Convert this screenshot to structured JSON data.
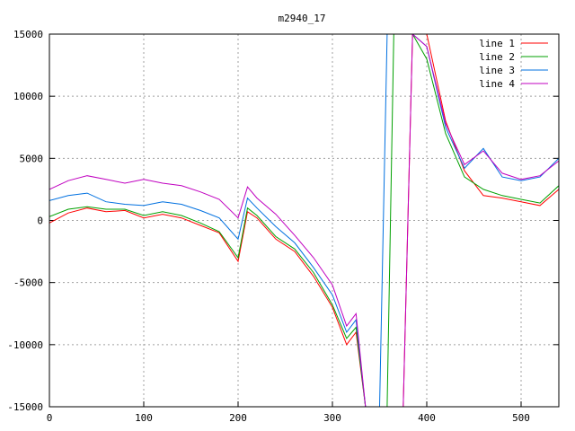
{
  "chart_data": {
    "type": "line",
    "title": "m2940_17",
    "xlabel": "",
    "ylabel": "",
    "xlim": [
      0,
      540
    ],
    "ylim": [
      -15000,
      15000
    ],
    "x_ticks": [
      "0",
      "100",
      "200",
      "300",
      "400",
      "500"
    ],
    "y_ticks": [
      "-15000",
      "-10000",
      "-5000",
      "0",
      "5000",
      "10000",
      "15000"
    ],
    "grid": true,
    "legend_position": "top-right",
    "series": [
      {
        "name": "line 1",
        "color": "#ff0000",
        "x": [
          0,
          20,
          40,
          60,
          80,
          100,
          120,
          140,
          160,
          180,
          200,
          210,
          220,
          240,
          260,
          280,
          300,
          315,
          325,
          335,
          350,
          358,
          365,
          375,
          385,
          400,
          420,
          440,
          460,
          480,
          500,
          520,
          540
        ],
        "y": [
          -200,
          600,
          1000,
          700,
          800,
          200,
          500,
          200,
          -400,
          -1000,
          -3300,
          700,
          200,
          -1500,
          -2500,
          -4500,
          -7000,
          -10000,
          -9000,
          -15000,
          -15000,
          -15000,
          -15000,
          -15000,
          15000,
          15000,
          8000,
          4000,
          2000,
          1800,
          1500,
          1200,
          2500
        ]
      },
      {
        "name": "line 2",
        "color": "#00a000",
        "x": [
          0,
          20,
          40,
          60,
          80,
          100,
          120,
          140,
          160,
          180,
          200,
          210,
          220,
          240,
          260,
          280,
          300,
          315,
          325,
          335,
          350,
          358,
          365,
          375,
          385,
          400,
          420,
          440,
          460,
          480,
          500,
          520,
          540
        ],
        "y": [
          300,
          900,
          1100,
          900,
          900,
          400,
          700,
          400,
          -200,
          -900,
          -3000,
          1000,
          400,
          -1300,
          -2300,
          -4200,
          -6800,
          -9500,
          -8600,
          -15000,
          -15000,
          -15000,
          15000,
          15000,
          15000,
          13000,
          7000,
          3500,
          2500,
          2000,
          1700,
          1400,
          2800
        ]
      },
      {
        "name": "line 3",
        "color": "#0070e0",
        "x": [
          0,
          20,
          40,
          60,
          80,
          100,
          120,
          140,
          160,
          180,
          200,
          210,
          220,
          240,
          260,
          280,
          300,
          315,
          325,
          335,
          350,
          358,
          365,
          375,
          385,
          400,
          420,
          440,
          460,
          480,
          500,
          520,
          540
        ],
        "y": [
          1600,
          2000,
          2200,
          1500,
          1300,
          1200,
          1500,
          1300,
          800,
          200,
          -1500,
          1800,
          1000,
          -500,
          -1800,
          -3800,
          -6000,
          -9000,
          -8000,
          -15000,
          -15000,
          15000,
          15000,
          15000,
          15000,
          14000,
          7500,
          4200,
          5800,
          3500,
          3200,
          3500,
          5000
        ]
      },
      {
        "name": "line 4",
        "color": "#c000c0",
        "x": [
          0,
          20,
          40,
          60,
          80,
          100,
          120,
          140,
          160,
          180,
          200,
          210,
          220,
          240,
          260,
          280,
          300,
          315,
          325,
          335,
          350,
          358,
          365,
          375,
          385,
          400,
          420,
          440,
          460,
          480,
          500,
          520,
          540
        ],
        "y": [
          2500,
          3200,
          3600,
          3300,
          3000,
          3300,
          3000,
          2800,
          2300,
          1700,
          200,
          2700,
          1800,
          500,
          -1200,
          -3000,
          -5200,
          -8500,
          -7500,
          -15000,
          -15000,
          -15000,
          -15000,
          -15000,
          15000,
          14000,
          7800,
          4500,
          5600,
          3800,
          3300,
          3600,
          4800
        ]
      }
    ]
  }
}
